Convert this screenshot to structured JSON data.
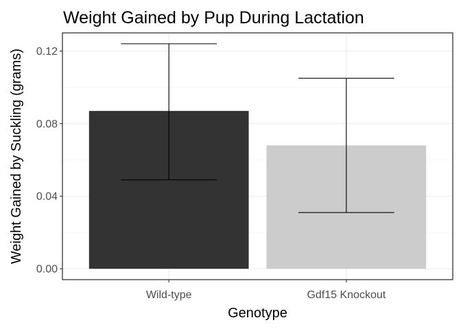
{
  "chart_data": {
    "type": "bar",
    "title": "Weight Gained by Pup During Lactation",
    "xlabel": "Genotype",
    "ylabel": "Weight Gained by Suckling (grams)",
    "categories": [
      "Wild-type",
      "Gdf15 Knockout"
    ],
    "values": [
      0.087,
      0.068
    ],
    "error_upper": [
      0.124,
      0.105
    ],
    "error_lower": [
      0.049,
      0.031
    ],
    "colors": [
      "#333333",
      "#cccccc"
    ],
    "ylim": [
      -0.006,
      0.13
    ],
    "yticks": [
      0,
      0.04,
      0.08,
      0.12
    ],
    "ytick_labels": [
      "0.00",
      "0.04",
      "0.08",
      "0.12"
    ],
    "grid": true
  }
}
